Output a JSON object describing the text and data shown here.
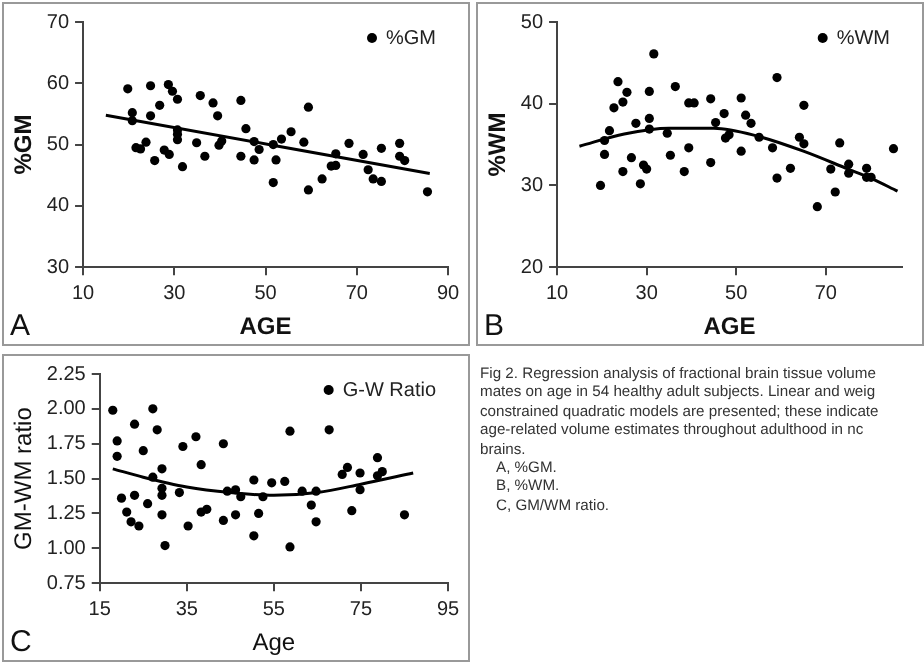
{
  "chart_data": [
    {
      "type": "scatter",
      "xlabel": "AGE",
      "ylabel": "%GM",
      "annotations": [
        "A"
      ],
      "legend": "top right",
      "xlim": [
        10,
        90
      ],
      "xticks": [
        10,
        30,
        50,
        70,
        90
      ],
      "ylim": [
        30,
        70
      ],
      "yticks": [
        30,
        40,
        50,
        60,
        70
      ],
      "series": [
        {
          "name": "%GM",
          "color": "#000000",
          "marker": "circle",
          "x": [
            19.8,
            20.8,
            20.8,
            21.6,
            22.6,
            23.8,
            24.8,
            24.8,
            25.7,
            26.8,
            27.8,
            28.7,
            28.9,
            29.6,
            30.7,
            30.7,
            30.7,
            30.7,
            31.8,
            34.9,
            35.7,
            36.7,
            38.5,
            39.5,
            39.8,
            40.4,
            44.6,
            44.6,
            45.7,
            47.5,
            47.5,
            48.6,
            51.7,
            51.7,
            52.3,
            53.5,
            55.6,
            58.4,
            59.4,
            59.4,
            62.4,
            64.4,
            65.4,
            65.4,
            68.3,
            71.4,
            72.5,
            73.6,
            75.4,
            75.4,
            79.4,
            79.4,
            80.5,
            85.5
          ],
          "values": [
            59.1,
            55.2,
            53.9,
            49.5,
            49.3,
            50.4,
            59.6,
            54.7,
            47.4,
            56.4,
            49.1,
            59.8,
            48.4,
            58.7,
            57.4,
            52.4,
            51.7,
            50.8,
            46.4,
            50.3,
            58.0,
            48.1,
            56.8,
            54.7,
            49.9,
            50.6,
            57.2,
            48.1,
            52.6,
            50.5,
            47.5,
            49.2,
            50.0,
            43.8,
            47.5,
            50.9,
            52.1,
            50.4,
            56.1,
            42.6,
            44.4,
            46.5,
            48.5,
            46.6,
            50.2,
            48.4,
            45.9,
            44.4,
            49.4,
            44.0,
            50.2,
            48.1,
            47.4,
            42.3
          ]
        },
        {
          "type": "line",
          "color": "#000000",
          "marker": "none",
          "x": [
            15,
            86
          ],
          "values": [
            54.8,
            45.3
          ]
        }
      ]
    },
    {
      "type": "scatter",
      "xlabel": "AGE",
      "ylabel": "%WM",
      "annotations": [
        "B"
      ],
      "legend": "top right",
      "xlim": [
        10,
        87
      ],
      "xticks": [
        10,
        30,
        50,
        70
      ],
      "ylim": [
        20,
        50
      ],
      "yticks": [
        20,
        30,
        40,
        50
      ],
      "series": [
        {
          "name": "%WM",
          "color": "#000000",
          "marker": "circle",
          "x": [
            19.7,
            20.6,
            20.6,
            21.7,
            22.7,
            23.6,
            24.7,
            24.7,
            25.6,
            26.6,
            27.6,
            28.6,
            29.3,
            30.0,
            30.6,
            30.6,
            30.6,
            31.6,
            34.6,
            35.3,
            36.4,
            38.4,
            39.4,
            39.4,
            40.6,
            44.3,
            44.3,
            45.4,
            47.3,
            47.6,
            48.4,
            51.1,
            51.1,
            52.1,
            53.3,
            55.1,
            58.1,
            59.1,
            59.1,
            62.1,
            64.1,
            65.1,
            65.1,
            68.1,
            71.1,
            72.1,
            73.1,
            75.1,
            75.1,
            79.1,
            79.1,
            80.1,
            85.1
          ],
          "values": [
            30.0,
            33.8,
            35.5,
            36.7,
            39.5,
            42.7,
            40.2,
            31.7,
            41.4,
            33.4,
            37.6,
            30.2,
            32.5,
            32.0,
            41.5,
            38.2,
            36.9,
            46.1,
            36.4,
            33.7,
            42.1,
            31.7,
            34.6,
            40.1,
            40.1,
            40.6,
            32.8,
            37.7,
            38.8,
            35.8,
            36.2,
            40.7,
            34.2,
            38.6,
            37.6,
            35.9,
            34.6,
            43.2,
            30.9,
            32.1,
            35.9,
            39.8,
            35.1,
            27.4,
            32.0,
            29.2,
            35.2,
            31.5,
            32.6,
            32.1,
            31.0,
            31.0,
            34.5
          ]
        },
        {
          "type": "line",
          "color": "#000000",
          "marker": "none",
          "x": [
            15,
            25,
            35,
            45,
            55,
            65,
            75,
            80,
            86
          ],
          "values": [
            34.8,
            36.3,
            37.0,
            37.0,
            36.0,
            34.2,
            32.0,
            30.9,
            29.3
          ]
        }
      ]
    },
    {
      "type": "scatter",
      "xlabel": "Age",
      "ylabel": "GM-WM ratio",
      "annotations": [
        "C"
      ],
      "legend": "top right",
      "xlim": [
        15,
        95
      ],
      "xticks": [
        15,
        35,
        55,
        75,
        95
      ],
      "ylim": [
        0.75,
        2.25
      ],
      "yticks": [
        0.75,
        {
          "value": 1.0,
          "label": "1.00"
        },
        1.25,
        {
          "value": 1.5,
          "label": "1.50"
        },
        1.75,
        {
          "value": 2.0,
          "label": "2.00"
        },
        2.25
      ],
      "series": [
        {
          "name": "G-W Ratio",
          "color": "#000000",
          "marker": "circle",
          "x": [
            18,
            19,
            19,
            20,
            21.2,
            22.2,
            23,
            23,
            24,
            25,
            26,
            27.2,
            27.2,
            28.2,
            29.3,
            29.3,
            29.3,
            29.3,
            30,
            33.3,
            34.1,
            35.3,
            37.1,
            38.3,
            38.3,
            39.6,
            43.4,
            43.4,
            44.3,
            46.2,
            46.2,
            47.4,
            50.4,
            50.4,
            51.5,
            52.5,
            54.5,
            57.5,
            58.7,
            58.7,
            61.5,
            63.6,
            64.7,
            64.7,
            67.7,
            70.7,
            71.9,
            72.9,
            74.8,
            74.8,
            78.8,
            78.8,
            79.9,
            85
          ],
          "values": [
            1.99,
            1.77,
            1.66,
            1.36,
            1.26,
            1.19,
            1.89,
            1.38,
            1.16,
            1.7,
            1.32,
            2.0,
            1.51,
            1.85,
            1.57,
            1.43,
            1.38,
            1.24,
            1.02,
            1.4,
            1.73,
            1.16,
            1.8,
            1.6,
            1.26,
            1.28,
            1.75,
            1.2,
            1.41,
            1.42,
            1.24,
            1.37,
            1.49,
            1.09,
            1.25,
            1.37,
            1.47,
            1.48,
            1.84,
            1.01,
            1.41,
            1.31,
            1.41,
            1.19,
            1.85,
            1.53,
            1.58,
            1.27,
            1.54,
            1.42,
            1.65,
            1.52,
            1.55,
            1.24
          ]
        },
        {
          "type": "line",
          "color": "#000000",
          "marker": "none",
          "x": [
            18,
            25,
            35,
            45,
            55,
            65,
            75,
            87
          ],
          "values": [
            1.57,
            1.51,
            1.44,
            1.4,
            1.38,
            1.4,
            1.46,
            1.54
          ]
        }
      ]
    },
    {
      "type": "other",
      "annotations": [
        "Fig 2. Regression analysis of fractional brain tissue volume",
        "mates on age in 54 healthy adult subjects. Linear and weig",
        "constrained quadratic models are presented; these indicate",
        "age-related volume estimates throughout adulthood in nc",
        "brains.",
        "A, %GM.",
        "B, %WM.",
        "C, GM/WM ratio."
      ]
    }
  ]
}
